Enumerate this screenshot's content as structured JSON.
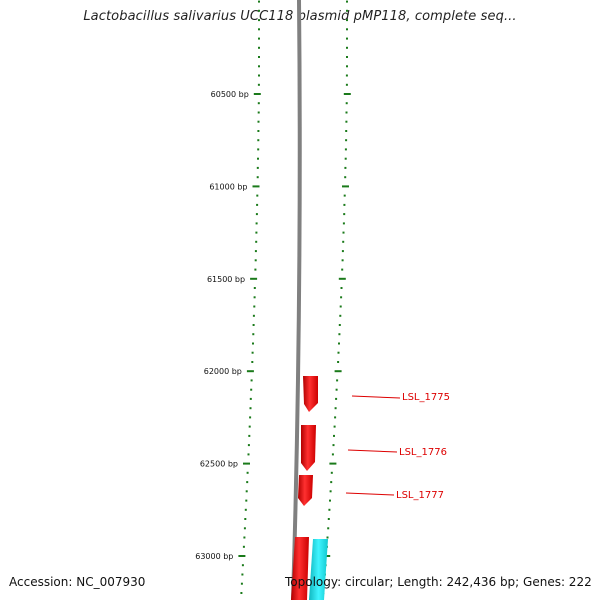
{
  "title": "Lactobacillus salivarius UCC118 plasmid pMP118, complete seq...",
  "footer": {
    "accession": "Accession: NC_007930",
    "summary": "Topology: circular; Length: 242,436 bp; Genes: 222"
  },
  "ticks": [
    {
      "bp": 60500,
      "label": "60500 bp"
    },
    {
      "bp": 61000,
      "label": "61000 bp"
    },
    {
      "bp": 61500,
      "label": "61500 bp"
    },
    {
      "bp": 62000,
      "label": "62000 bp"
    },
    {
      "bp": 62500,
      "label": "62500 bp"
    },
    {
      "bp": 63000,
      "label": "63000 bp"
    }
  ],
  "genes": [
    {
      "name": "LSL_1775",
      "color": "#ee1111",
      "label_color": "#dd0000"
    },
    {
      "name": "LSL_1776",
      "color": "#ee1111",
      "label_color": "#dd0000"
    },
    {
      "name": "LSL_1777",
      "color": "#ee1111",
      "label_color": "#dd0000"
    }
  ],
  "colors": {
    "backbone": "#808080",
    "tick": "#1a7a1a",
    "gene_forward": "#ee1111",
    "gene_other": "#22e0e8"
  }
}
